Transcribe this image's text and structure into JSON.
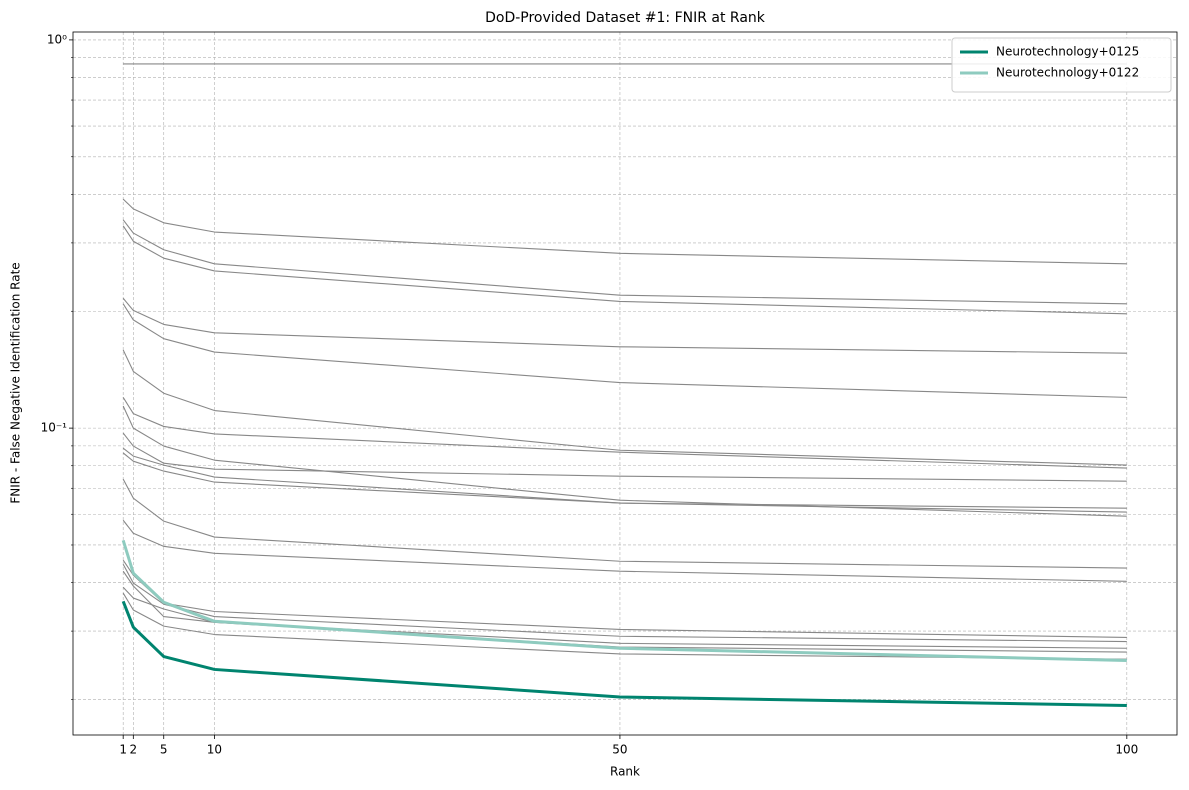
{
  "chart_data": {
    "type": "line",
    "title": "DoD-Provided Dataset #1: FNIR at Rank",
    "xlabel": "Rank",
    "ylabel": "FNIR - False Negative Identification Rate",
    "x": [
      1,
      2,
      5,
      10,
      50,
      100
    ],
    "xlim": [
      -3.95,
      104.95
    ],
    "xticks": [
      1,
      2,
      5,
      10,
      50,
      100
    ],
    "ylim": [
      0.0162,
      1.048
    ],
    "yscale": "log",
    "yticks": [
      {
        "value": 0.1,
        "label": "10⁻¹"
      },
      {
        "value": 1,
        "label": "10⁰"
      }
    ],
    "yminorticks": [
      0.02,
      0.03,
      0.04,
      0.05,
      0.06,
      0.07,
      0.08,
      0.09,
      0.2,
      0.3,
      0.4,
      0.5,
      0.6,
      0.7,
      0.8,
      0.9
    ],
    "grid": true,
    "legend": "upper right",
    "series": [
      {
        "name": "Neurotechnology+0125",
        "color": "#00846f",
        "values": [
          0.0358,
          0.0307,
          0.0258,
          0.0239,
          0.0203,
          0.0193
        ]
      },
      {
        "name": "Neurotechnology+0122",
        "color": "#8ecbbf",
        "values": [
          0.0514,
          0.0423,
          0.0356,
          0.0318,
          0.0271,
          0.0252
        ]
      },
      {
        "color": "#888888",
        "values": [
          0.867,
          0.867,
          0.867,
          0.867,
          0.867,
          0.867
        ]
      },
      {
        "color": "#888888",
        "values": [
          0.389,
          0.367,
          0.338,
          0.32,
          0.282,
          0.265
        ]
      },
      {
        "color": "#888888",
        "values": [
          0.344,
          0.318,
          0.288,
          0.265,
          0.22,
          0.209
        ]
      },
      {
        "color": "#888888",
        "values": [
          0.332,
          0.303,
          0.274,
          0.254,
          0.212,
          0.197
        ]
      },
      {
        "color": "#888888",
        "values": [
          0.216,
          0.201,
          0.185,
          0.176,
          0.162,
          0.156
        ]
      },
      {
        "color": "#888888",
        "values": [
          0.209,
          0.19,
          0.17,
          0.157,
          0.131,
          0.12
        ]
      },
      {
        "color": "#888888",
        "values": [
          0.159,
          0.14,
          0.123,
          0.111,
          0.0877,
          0.0803
        ]
      },
      {
        "color": "#888888",
        "values": [
          0.12,
          0.109,
          0.101,
          0.0966,
          0.0867,
          0.0789
        ]
      },
      {
        "color": "#888888",
        "values": [
          0.114,
          0.1,
          0.0899,
          0.0827,
          0.0652,
          0.0593
        ]
      },
      {
        "color": "#888888",
        "values": [
          0.0971,
          0.0899,
          0.0812,
          0.0784,
          0.0752,
          0.073
        ]
      },
      {
        "color": "#888888",
        "values": [
          0.0888,
          0.0847,
          0.0803,
          0.0748,
          0.0641,
          0.0608
        ]
      },
      {
        "color": "#888888",
        "values": [
          0.0863,
          0.0822,
          0.0775,
          0.0726,
          0.0641,
          0.0622
        ]
      },
      {
        "color": "#888888",
        "values": [
          0.0739,
          0.066,
          0.0576,
          0.0524,
          0.0454,
          0.0436
        ]
      },
      {
        "color": "#888888",
        "values": [
          0.0579,
          0.0536,
          0.0496,
          0.0476,
          0.0428,
          0.0403
        ]
      },
      {
        "color": "#888888",
        "values": [
          0.0457,
          0.0418,
          0.0354,
          0.0337,
          0.0303,
          0.0289
        ]
      },
      {
        "color": "#888888",
        "values": [
          0.0446,
          0.0399,
          0.0352,
          0.0327,
          0.0291,
          0.0282
        ]
      },
      {
        "color": "#888888",
        "values": [
          0.0428,
          0.0392,
          0.0327,
          0.0316,
          0.0279,
          0.0271
        ]
      },
      {
        "color": "#888888",
        "values": [
          0.0389,
          0.0365,
          0.0342,
          0.0316,
          0.0273,
          0.0265
        ]
      },
      {
        "color": "#888888",
        "values": [
          0.0376,
          0.034,
          0.0309,
          0.0294,
          0.0262,
          0.0254
        ]
      }
    ]
  }
}
